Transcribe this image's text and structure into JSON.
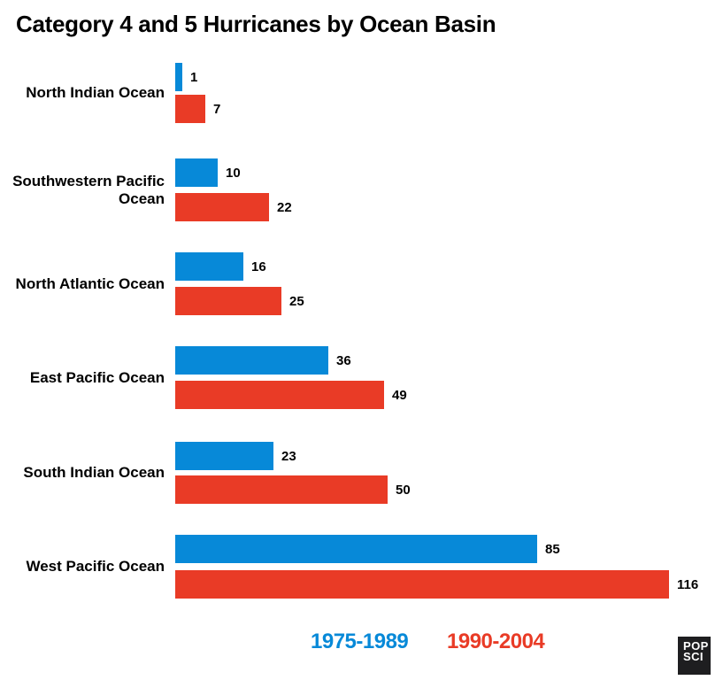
{
  "title": "Category 4 and 5 Hurricanes by Ocean Basin",
  "colors": {
    "series1": "#0789d8",
    "series2": "#e93b26",
    "text": "#000000",
    "brand_box": "#1e1e20",
    "brand_text": "#ffffff",
    "background": "#ffffff"
  },
  "chart_data": {
    "type": "bar",
    "orientation": "horizontal",
    "title": "Category 4 and 5 Hurricanes by Ocean Basin",
    "categories": [
      "North Indian Ocean",
      "Southwestern Pacific Ocean",
      "North Atlantic Ocean",
      "East Pacific Ocean",
      "South Indian Ocean",
      "West Pacific Ocean"
    ],
    "series": [
      {
        "name": "1975-1989",
        "color": "#0789d8",
        "values": [
          1,
          10,
          16,
          36,
          23,
          85
        ]
      },
      {
        "name": "1990-2004",
        "color": "#e93b26",
        "values": [
          7,
          22,
          25,
          49,
          50,
          116
        ]
      }
    ],
    "value_labels": true,
    "axis": "none",
    "grid": false,
    "legend_position": "bottom",
    "xlim": [
      0,
      125
    ]
  },
  "legend": {
    "items": [
      {
        "label": "1975-1989",
        "color": "#0789d8"
      },
      {
        "label": "1990-2004",
        "color": "#e93b26"
      }
    ]
  },
  "branding": {
    "line1": "POP",
    "line2": "SCI"
  }
}
